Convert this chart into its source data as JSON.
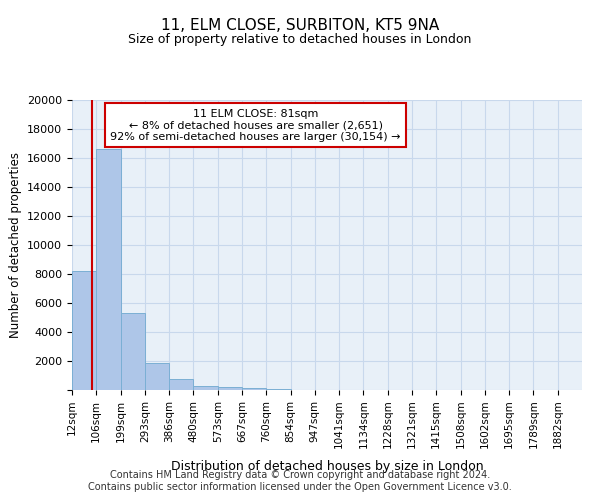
{
  "title": "11, ELM CLOSE, SURBITON, KT5 9NA",
  "subtitle": "Size of property relative to detached houses in London",
  "xlabel": "Distribution of detached houses by size in London",
  "ylabel": "Number of detached properties",
  "bar_categories": [
    "12sqm",
    "106sqm",
    "199sqm",
    "293sqm",
    "386sqm",
    "480sqm",
    "573sqm",
    "667sqm",
    "760sqm",
    "854sqm",
    "947sqm",
    "1041sqm",
    "1134sqm",
    "1228sqm",
    "1321sqm",
    "1415sqm",
    "1508sqm",
    "1602sqm",
    "1695sqm",
    "1789sqm",
    "1882sqm"
  ],
  "bar_left_edges": [
    0,
    1,
    2,
    3,
    4,
    5,
    6,
    7,
    8,
    9,
    10,
    11,
    12,
    13,
    14,
    15,
    16,
    17,
    18,
    19,
    20
  ],
  "bar_values": [
    8200,
    16600,
    5300,
    1850,
    780,
    290,
    200,
    150,
    50,
    0,
    0,
    0,
    0,
    0,
    0,
    0,
    0,
    0,
    0,
    0,
    0
  ],
  "bar_color": "#aec6e8",
  "bar_edge_color": "#7bafd4",
  "grid_color": "#c8d8ec",
  "bg_color": "#e8f0f8",
  "vline_x": 0.81,
  "vline_color": "#cc0000",
  "annotation_text": "11 ELM CLOSE: 81sqm\n← 8% of detached houses are smaller (2,651)\n92% of semi-detached houses are larger (30,154) →",
  "annotation_box_color": "#ffffff",
  "annotation_box_edge": "#cc0000",
  "ylim": [
    0,
    20000
  ],
  "yticks": [
    0,
    2000,
    4000,
    6000,
    8000,
    10000,
    12000,
    14000,
    16000,
    18000,
    20000
  ],
  "footer_line1": "Contains HM Land Registry data © Crown copyright and database right 2024.",
  "footer_line2": "Contains public sector information licensed under the Open Government Licence v3.0."
}
